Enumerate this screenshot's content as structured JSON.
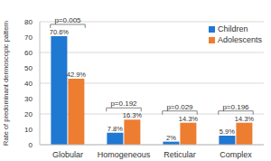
{
  "chart_data": {
    "type": "bar",
    "y_label": "Rate of predominant dermoscopic pattern",
    "categories": [
      "Globular",
      "Homogeneous",
      "Reticular",
      "Complex"
    ],
    "series": [
      {
        "name": "Children",
        "color": "#1f78d1",
        "values": [
          70.6,
          7.8,
          2,
          5.9
        ],
        "value_labels": [
          "70.6%",
          "7.8%",
          "2%",
          "5.9%"
        ]
      },
      {
        "name": "Adolescents",
        "color": "#ed7d31",
        "values": [
          42.9,
          16.3,
          14.3,
          14.3
        ],
        "value_labels": [
          "42.9%",
          "16.3%",
          "14.3%",
          "14.3%"
        ]
      }
    ],
    "annotations": [
      "p=0.005",
      "p=0.192",
      "p=0.029",
      "p=0.196"
    ],
    "ylim": [
      0,
      80
    ],
    "yticks": [
      0,
      10,
      20,
      30,
      40,
      50,
      60,
      70,
      80
    ],
    "grid": true,
    "legend": "upper right",
    "data_labels": true
  }
}
